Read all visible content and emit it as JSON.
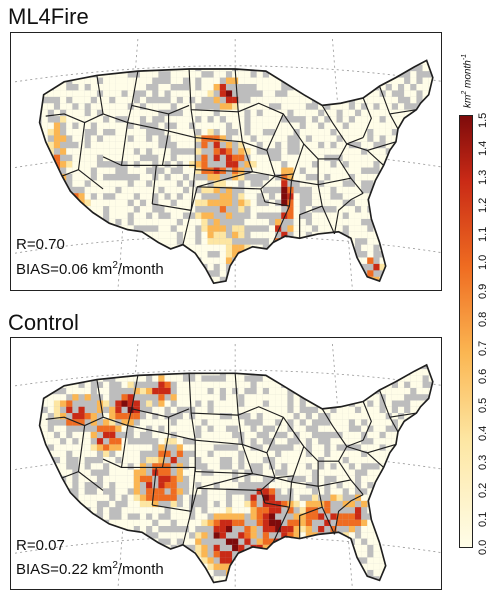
{
  "panels": [
    {
      "title": "ML4Fire",
      "r_text": "R=0.70",
      "bias_prefix": "BIAS=0.06 km",
      "bias_suffix": "/month",
      "hotspots": [
        {
          "region": "north-dakota",
          "intensity": 1.4
        },
        {
          "region": "kansas-nebraska",
          "intensity": 1.3
        },
        {
          "region": "mississippi-valley",
          "intensity": 1.5
        },
        {
          "region": "south-florida",
          "intensity": 1.3
        },
        {
          "region": "california",
          "intensity": 0.9
        },
        {
          "region": "texas-oklahoma",
          "intensity": 0.8
        }
      ]
    },
    {
      "title": "Control",
      "r_text": "R=0.07",
      "bias_prefix": "BIAS=0.22 km",
      "bias_suffix": "/month",
      "hotspots": [
        {
          "region": "northern-rockies",
          "intensity": 1.4
        },
        {
          "region": "idaho-oregon",
          "intensity": 1.3
        },
        {
          "region": "four-corners",
          "intensity": 1.3
        },
        {
          "region": "east-texas",
          "intensity": 1.5
        },
        {
          "region": "louisiana-arkansas",
          "intensity": 1.5
        },
        {
          "region": "southeast",
          "intensity": 1.3
        }
      ]
    }
  ],
  "colorbar": {
    "label_main": "km",
    "label_sup1": "2",
    "label_mid": " month",
    "label_sup2": "-1",
    "ticks": [
      "0.0",
      "0.1",
      "0.2",
      "0.3",
      "0.4",
      "0.5",
      "0.6",
      "0.7",
      "0.8",
      "0.9",
      "1.0",
      "1.1",
      "1.2",
      "1.3",
      "1.4",
      "1.5"
    ],
    "min": 0.0,
    "max": 1.5,
    "colors": {
      "low": "#fffde8",
      "mid_low": "#fde6a2",
      "mid": "#fbb652",
      "mid_high": "#ef6c21",
      "high": "#c92a16",
      "max": "#7e0b0b"
    }
  },
  "map_colors": {
    "no_data": "#bdbdbd",
    "border": "#1f1f1f",
    "graticule": "#9a9a9a"
  }
}
